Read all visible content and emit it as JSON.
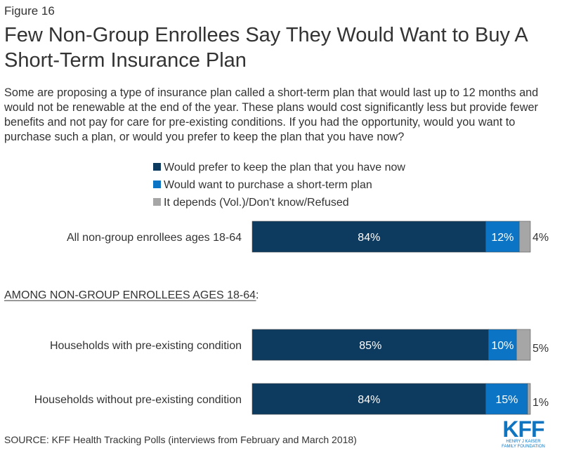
{
  "figure_label": "Figure 16",
  "title": "Few Non-Group Enrollees Say They Would Want to Buy A Short-Term Insurance Plan",
  "subtitle": "Some are proposing a type of insurance plan called a short-term plan that would last up to 12 months and would not be renewable at the end of the year.  These plans would cost significantly less but provide fewer benefits and not pay for care for pre-existing conditions. If you had the opportunity, would you want to purchase such a plan, or would you prefer to keep the plan that you have now?",
  "source": "SOURCE: KFF Health Tracking Polls (interviews from February and March 2018)",
  "logo": {
    "text": "KFF",
    "line1": "HENRY J KAISER",
    "line2": "FAMILY FOUNDATION"
  },
  "chart_data": {
    "type": "bar",
    "orientation": "horizontal",
    "stacked": true,
    "legend_placement": "top",
    "section_label": "AMONG NON-GROUP ENROLLEES AGES 18-64",
    "categories": [
      "All non-group enrollees ages 18-64",
      "Households with pre-existing condition",
      "Households without pre-existing condition"
    ],
    "series": [
      {
        "name": "Would prefer to keep the plan that you have now",
        "color": "#0d3a5f",
        "values": [
          84,
          85,
          84
        ],
        "labels": [
          "84%",
          "85%",
          "84%"
        ]
      },
      {
        "name": "Would want to purchase a short-term plan",
        "color": "#0b74c4",
        "values": [
          12,
          10,
          15
        ],
        "labels": [
          "12%",
          "10%",
          "15%"
        ]
      },
      {
        "name": "It depends (Vol.)/Don't know/Refused",
        "color": "#a6a6a6",
        "values": [
          4,
          5,
          1
        ],
        "labels": [
          "4%",
          "5%",
          "1%"
        ]
      }
    ],
    "xlim": [
      0,
      100
    ]
  }
}
